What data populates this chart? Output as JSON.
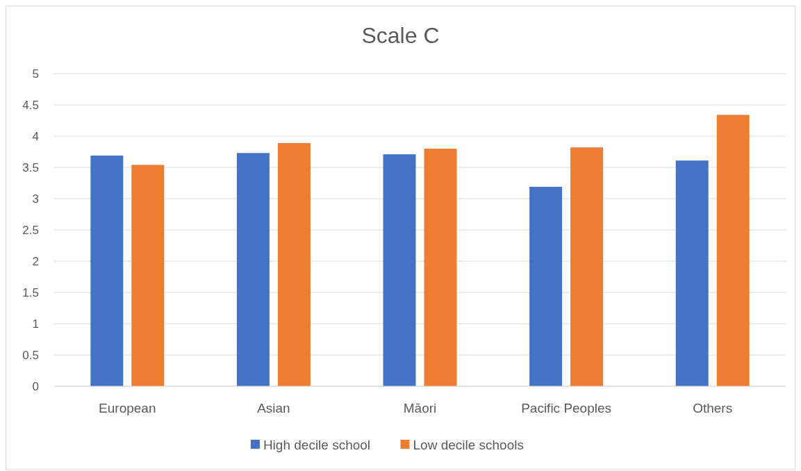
{
  "chart_data": {
    "type": "bar",
    "title": "Scale C",
    "categories": [
      "European",
      "Asian",
      "Māori",
      "Pacific Peoples",
      "Others"
    ],
    "series": [
      {
        "name": "High decile school",
        "color": "#4472c4",
        "values": [
          3.69,
          3.73,
          3.71,
          3.19,
          3.61
        ]
      },
      {
        "name": "Low decile schools",
        "color": "#ed7d31",
        "values": [
          3.54,
          3.89,
          3.8,
          3.82,
          4.34
        ]
      }
    ],
    "ylim": [
      0,
      5
    ],
    "yticks": [
      0,
      0.5,
      1,
      1.5,
      2,
      2.5,
      3,
      3.5,
      4,
      4.5,
      5
    ],
    "grid": "y",
    "legend": "bottom"
  }
}
